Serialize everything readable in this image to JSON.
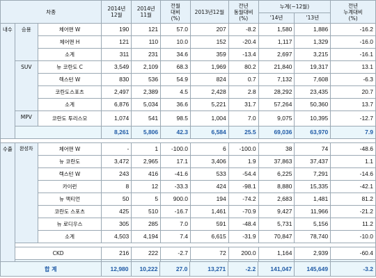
{
  "header": {
    "category": "차종",
    "c1": "2014년\n12월",
    "c2": "2014년\n11월",
    "c3": "전월\n대비\n(%)",
    "c4": "2013년12월",
    "c5": "전년\n동월대비\n(%)",
    "cum": "누계(~12월)",
    "c6": "'14년",
    "c7": "'13년",
    "c8": "전년\n누계대비\n(%)"
  },
  "domestic": {
    "label": "내수",
    "groups": [
      {
        "label": "승용",
        "rows": [
          {
            "name": "체어맨 W",
            "v": [
              "190",
              "121",
              "57.0",
              "207",
              "-8.2",
              "1,580",
              "1,886",
              "-16.2"
            ]
          },
          {
            "name": "체어맨 H",
            "v": [
              "121",
              "110",
              "10.0",
              "152",
              "-20.4",
              "1,117",
              "1,329",
              "-16.0"
            ]
          },
          {
            "name": "소계",
            "v": [
              "311",
              "231",
              "34.6",
              "359",
              "-13.4",
              "2,697",
              "3,215",
              "-16.1"
            ]
          }
        ]
      },
      {
        "label": "SUV",
        "rows": [
          {
            "name": "뉴 코란도 C",
            "v": [
              "3,549",
              "2,109",
              "68.3",
              "1,969",
              "80.2",
              "21,840",
              "19,317",
              "13.1"
            ]
          },
          {
            "name": "렉스턴 W",
            "v": [
              "830",
              "536",
              "54.9",
              "824",
              "0.7",
              "7,132",
              "7,608",
              "-6.3"
            ]
          },
          {
            "name": "코란도스포츠",
            "v": [
              "2,497",
              "2,389",
              "4.5",
              "2,428",
              "2.8",
              "28,292",
              "23,435",
              "20.7"
            ]
          },
          {
            "name": "소계",
            "v": [
              "6,876",
              "5,034",
              "36.6",
              "5,221",
              "31.7",
              "57,264",
              "50,360",
              "13.7"
            ]
          }
        ]
      },
      {
        "label": "MPV",
        "rows": [
          {
            "name": "코란도 투리스모",
            "v": [
              "1,074",
              "541",
              "98.5",
              "1,004",
              "7.0",
              "9,075",
              "10,395",
              "-12.7"
            ]
          }
        ]
      }
    ],
    "total": [
      "8,261",
      "5,806",
      "42.3",
      "6,584",
      "25.5",
      "69,036",
      "63,970",
      "7.9"
    ]
  },
  "export": {
    "label": "수출",
    "group_label": "완성차",
    "rows": [
      {
        "name": "체어맨 W",
        "v": [
          "-",
          "1",
          "-100.0",
          "6",
          "-100.0",
          "38",
          "74",
          "-48.6"
        ]
      },
      {
        "name": "뉴 코란도",
        "v": [
          "3,472",
          "2,965",
          "17.1",
          "3,406",
          "1.9",
          "37,863",
          "37,437",
          "1.1"
        ]
      },
      {
        "name": "렉스턴 W",
        "v": [
          "243",
          "416",
          "-41.6",
          "533",
          "-54.4",
          "6,225",
          "7,291",
          "-14.6"
        ]
      },
      {
        "name": "카이런",
        "v": [
          "8",
          "12",
          "-33.3",
          "424",
          "-98.1",
          "8,880",
          "15,335",
          "-42.1"
        ]
      },
      {
        "name": "뉴 액티언",
        "v": [
          "50",
          "5",
          "900.0",
          "194",
          "-74.2",
          "2,683",
          "1,481",
          "81.2"
        ]
      },
      {
        "name": "코란도 스포츠",
        "v": [
          "425",
          "510",
          "-16.7",
          "1,461",
          "-70.9",
          "9,427",
          "11,966",
          "-21.2"
        ]
      },
      {
        "name": "뉴 로디우스",
        "v": [
          "305",
          "285",
          "7.0",
          "591",
          "-48.4",
          "5,731",
          "5,156",
          "11.2"
        ]
      },
      {
        "name": "소계",
        "v": [
          "4,503",
          "4,194",
          "7.4",
          "6,615",
          "-31.9",
          "70,847",
          "78,740",
          "-10.0"
        ]
      }
    ],
    "ckd": {
      "name": "CKD",
      "v": [
        "216",
        "222",
        "-2.7",
        "72",
        "200.0",
        "1,164",
        "2,939",
        "-60.4"
      ]
    },
    "total_label": "계",
    "total": [
      "4,719",
      "4,416",
      "6.9",
      "6,687",
      "-29.4",
      "72,011",
      "81,679",
      "-11.8"
    ]
  },
  "grand_total": {
    "label": "합 계",
    "v": [
      "12,980",
      "10,222",
      "27.0",
      "13,271",
      "-2.2",
      "141,047",
      "145,649",
      "-3.2"
    ]
  }
}
